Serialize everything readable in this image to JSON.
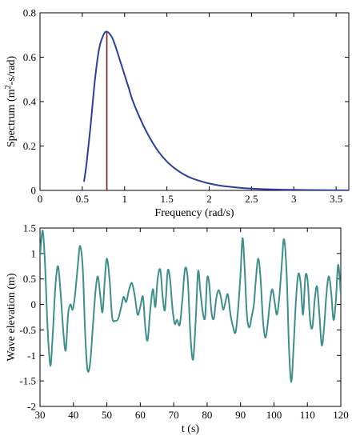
{
  "chart_data": [
    {
      "type": "line",
      "xlabel": "Frequency (rad/s)",
      "ylabel_parts": [
        "Spectrum (m",
        "2",
        "-s/rad)"
      ],
      "xlim": [
        0,
        3.65
      ],
      "ylim": [
        0,
        0.8
      ],
      "xticks": [
        0,
        0.5,
        1,
        1.5,
        2,
        2.5,
        3,
        3.5
      ],
      "xtick_labels": [
        "0",
        "0.5",
        "1",
        "1.5",
        "2",
        "2.5",
        "3",
        "3.5"
      ],
      "yticks": [
        0,
        0.2,
        0.4,
        0.6,
        0.8
      ],
      "ytick_labels": [
        "0",
        "0.2",
        "0.4",
        "0.6",
        "0.8"
      ],
      "series": [
        {
          "color": "#2b3f9e",
          "x": [
            0.52,
            0.55,
            0.6,
            0.65,
            0.7,
            0.75,
            0.79,
            0.85,
            0.9,
            0.95,
            1.0,
            1.05,
            1.1,
            1.2,
            1.3,
            1.4,
            1.5,
            1.6,
            1.7,
            1.8,
            2.0,
            2.2,
            2.5,
            2.8,
            3.0,
            3.3,
            3.65
          ],
          "y": [
            0.04,
            0.12,
            0.3,
            0.5,
            0.64,
            0.7,
            0.715,
            0.69,
            0.64,
            0.58,
            0.52,
            0.46,
            0.4,
            0.31,
            0.235,
            0.175,
            0.13,
            0.097,
            0.072,
            0.054,
            0.031,
            0.018,
            0.008,
            0.004,
            0.0025,
            0.0012,
            0.0005
          ]
        }
      ],
      "peak_line": {
        "x": 0.79,
        "y": 0.715,
        "color": "#7a1f1f"
      }
    },
    {
      "type": "line",
      "xlabel": "t (s)",
      "ylabel": "Wave elevation (m)",
      "xlim": [
        30,
        120
      ],
      "ylim": [
        -2,
        1.5
      ],
      "xticks": [
        30,
        40,
        50,
        60,
        70,
        80,
        90,
        100,
        110,
        120
      ],
      "xtick_labels": [
        "30",
        "40",
        "50",
        "60",
        "70",
        "80",
        "90",
        "100",
        "110",
        "120"
      ],
      "yticks": [
        -2,
        -1.5,
        -1,
        -0.5,
        0,
        0.5,
        1,
        1.5
      ],
      "ytick_labels": [
        "-2",
        "-1.5",
        "-1",
        "-0.5",
        "0",
        "0.5",
        "1",
        "1.5"
      ],
      "series": [
        {
          "color": "#3e8f8a",
          "x": [
            30,
            30.8,
            31.5,
            32.3,
            33.1,
            33.8,
            34.6,
            35.4,
            36.2,
            37.0,
            37.7,
            38.4,
            39.1,
            39.8,
            40.5,
            41.3,
            42.0,
            42.8,
            43.5,
            44.2,
            45.0,
            45.8,
            46.6,
            47.3,
            48.0,
            48.7,
            49.4,
            50.0,
            50.8,
            51.6,
            52.5,
            53.4,
            54.3,
            55.0,
            55.8,
            56.6,
            57.5,
            58.4,
            59.2,
            60.0,
            60.8,
            61.5,
            62.2,
            63.0,
            63.8,
            64.5,
            65.2,
            66.0,
            66.7,
            67.4,
            68.2,
            68.9,
            69.6,
            70.3,
            71.0,
            71.8,
            72.6,
            73.4,
            74.2,
            75.0,
            75.8,
            76.6,
            77.3,
            78.0,
            78.7,
            79.4,
            80.0,
            80.6,
            81.3,
            82.0,
            82.7,
            83.4,
            84.1,
            84.8,
            85.5,
            86.2,
            87.0,
            87.8,
            88.5,
            89.2,
            90.0,
            90.6,
            91.2,
            91.9,
            92.6,
            93.3,
            94.0,
            94.6,
            95.3,
            96.0,
            96.7,
            97.4,
            98.1,
            98.8,
            99.5,
            100.2,
            100.9,
            101.6,
            102.3,
            103.0,
            103.8,
            104.5,
            105.2,
            105.9,
            106.6,
            107.3,
            108.0,
            108.7,
            109.4,
            110.1,
            110.8,
            111.5,
            112.2,
            112.9,
            113.6,
            114.3,
            115.0,
            115.7,
            116.4,
            117.1,
            117.8,
            118.5,
            119.2,
            120
          ],
          "y": [
            0.95,
            1.45,
            0.8,
            -0.5,
            -1.2,
            -0.6,
            0.35,
            0.75,
            0.2,
            -0.55,
            -0.9,
            -0.2,
            0.0,
            -0.1,
            0.2,
            0.75,
            1.15,
            0.7,
            -0.55,
            -1.28,
            -1.15,
            -0.45,
            0.25,
            0.55,
            0.2,
            -0.15,
            0.5,
            0.9,
            0.5,
            -0.25,
            -0.32,
            -0.28,
            -0.05,
            0.15,
            0.05,
            0.28,
            0.42,
            0.15,
            -0.2,
            -0.05,
            0.15,
            -0.45,
            -0.7,
            -0.1,
            0.3,
            -0.05,
            0.5,
            0.68,
            0.15,
            -0.1,
            0.65,
            0.5,
            -0.05,
            -0.38,
            -0.3,
            -0.4,
            0.1,
            0.7,
            0.5,
            -0.6,
            -1.08,
            -0.3,
            0.65,
            0.25,
            -0.15,
            -0.25,
            0.5,
            0.42,
            -0.15,
            -0.28,
            0.1,
            0.28,
            0.15,
            -0.1,
            0.05,
            0.2,
            -0.2,
            -0.45,
            -0.55,
            -0.15,
            0.6,
            1.3,
            0.75,
            -0.2,
            -0.45,
            -0.25,
            0.0,
            0.5,
            0.9,
            0.5,
            -0.3,
            -0.65,
            -0.4,
            0.05,
            0.3,
            0.05,
            -0.2,
            0.15,
            0.75,
            1.28,
            0.6,
            -0.85,
            -1.52,
            -0.8,
            0.1,
            0.6,
            0.4,
            -0.2,
            0.55,
            0.45,
            -0.3,
            -0.45,
            0.1,
            0.35,
            -0.2,
            -0.8,
            -0.45,
            0.2,
            0.55,
            0.25,
            -0.3,
            0.05,
            0.78,
            0.2
          ]
        }
      ]
    }
  ]
}
